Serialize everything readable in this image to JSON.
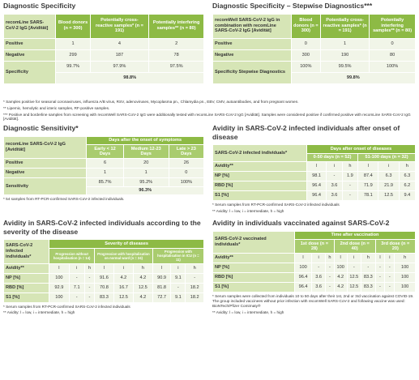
{
  "sections": [
    {
      "title": "Diagnostic Specificity",
      "table": {
        "head": [
          [
            "recomLine SARS-CoV-2 IgG [Avidität]",
            "Blood donors (n = 300)",
            "Potentially cross-reactive samples* (n = 191)",
            "Potentially interfering samples** (n = 80)"
          ]
        ],
        "rows": [
          [
            "Positive",
            "1",
            "4",
            "2"
          ],
          [
            "Negative",
            "299",
            "187",
            "78"
          ],
          [
            "Specificity",
            "99.7%",
            "97.9%",
            "97.5%"
          ]
        ],
        "total": "98.8%"
      }
    },
    {
      "title": "Diagnostic Specificity – Stepwise Diagnostics***",
      "table": {
        "head": [
          [
            "recomWell SARS-CoV-2 IgG in combination with recomLine SARS-CoV-2 IgG [Avidität]",
            "Blood donors (n = 300)",
            "Potentially cross-reactive samples* (n = 191)",
            "Potentially interfering samples** (n = 80)"
          ]
        ],
        "rows": [
          [
            "Positive",
            "0",
            "1",
            "0"
          ],
          [
            "Negative",
            "300",
            "190",
            "80"
          ],
          [
            "Specificity Stepwise Diagnostics",
            "100%",
            "99.5%",
            "100%"
          ]
        ],
        "total": "99.8%"
      }
    },
    {
      "title": "Diagnostic Sensitivity*",
      "table": {
        "head": [
          [
            "recomLine SARS-CoV-2 IgG [Avidität]",
            "Days after the onset of symptoms"
          ],
          [
            "Early < 12 Days",
            "Medium 12-23 Days",
            "Late > 23 Days"
          ]
        ],
        "rows": [
          [
            "Positive",
            "6",
            "20",
            "26"
          ],
          [
            "Negative",
            "1",
            "1",
            "0"
          ],
          [
            "Sensitivity",
            "85.7%",
            "95.2%",
            "100%"
          ]
        ],
        "total": "96.3%"
      },
      "footnotes": [
        "* 54 samples from RT-PCR-confirmed SARS-CoV-2 infected individuals."
      ]
    },
    {
      "title": "Avidity in SARS-CoV-2 infected individuals after onset of disease",
      "table": {
        "head": [
          [
            "SARS-CoV-2 infected individuals*",
            "Days after onset of diseases"
          ],
          [
            "0-50 days (n = 52)",
            "51-100 days (n = 32)"
          ]
        ],
        "rows": [
          [
            "Avidity**",
            "l",
            "i",
            "h",
            "l",
            "i",
            "h"
          ],
          [
            "NP [%]",
            "98.1",
            "-",
            "1.9",
            "87.4",
            "6.3",
            "6.3"
          ],
          [
            "RBD [%]",
            "96.4",
            "3.6",
            "-",
            "71.9",
            "21.9",
            "6.2"
          ],
          [
            "S1 [%]",
            "96.4",
            "3.6",
            "-",
            "78.1",
            "12.5",
            "9.4"
          ]
        ]
      },
      "footnotes": [
        "* Serum samples from RT-PCR-confirmed SARS-CoV-2 infected individuals",
        "** Avidity: l = low, i = intermediate, h = high"
      ]
    },
    {
      "title": "Avidity in SARS-CoV-2 infected individuals according to the severity of the disease",
      "table": {
        "head": [
          [
            "SARS-CoV-2 infected individuals*",
            "Severity of diseases"
          ],
          [
            "Progression without hospitalisation (n = 14)",
            "Progression with hospitalisation on normal ward (n = 24)",
            "Progression with hospitalisation in ICU (n = 11)"
          ]
        ],
        "rows": [
          [
            "Avidity**",
            "l",
            "i",
            "h",
            "l",
            "i",
            "h",
            "l",
            "i",
            "h"
          ],
          [
            "NP [%]",
            "100",
            "-",
            "-",
            "91.6",
            "4.2",
            "4.2",
            "90.9",
            "9.1",
            "-"
          ],
          [
            "RBD [%]",
            "92.9",
            "7.1",
            "-",
            "70.8",
            "16.7",
            "12.5",
            "81.8",
            "-",
            "18.2"
          ],
          [
            "S1 [%]",
            "100",
            "-",
            "-",
            "83.3",
            "12.5",
            "4.2",
            "72.7",
            "9.1",
            "18.2"
          ]
        ]
      },
      "footnotes": [
        "* Serum samples from RT-PCR-confirmed SARS-CoV-2 infected individuals",
        "** Avidity: l = low, i = intermediate, h = high"
      ]
    },
    {
      "title": "Avidity in individuals vaccinated against SARS-CoV-2",
      "table": {
        "head": [
          [
            "SARS-CoV-2 vaccinated individuals*",
            "Time after vaccination"
          ],
          [
            "1st dose (n = 28)",
            "2nd dose (n = 40)",
            "3rd dose (n = 20)"
          ]
        ],
        "rows": [
          [
            "Avidity**",
            "l",
            "i",
            "h",
            "l",
            "i",
            "h",
            "l",
            "i",
            "h"
          ],
          [
            "NP [%]",
            "100",
            "-",
            "-",
            "100",
            "-",
            "-",
            "-",
            "-",
            "100"
          ],
          [
            "RBD [%]",
            "96.4",
            "3.6",
            "-",
            "4.2",
            "12.5",
            "83.3",
            "-",
            "-",
            "100"
          ],
          [
            "S1 [%]",
            "96.4",
            "3.6",
            "-",
            "4.2",
            "12.5",
            "83.3",
            "-",
            "-",
            "100"
          ]
        ]
      },
      "footnotes": [
        "* Serum samples were collected from individuals 10 to 50 days after their 1st, 2nd or 3rd vaccination against COVID-19. The group included vaccinees without prior infection with recomWell SARS-CoV-2 and following vaccine was used: BioNTech/Pfizer Comirnaty®",
        "** Avidity: l = low, i = intermediate, h = high"
      ]
    }
  ],
  "footnotes": [
    "* Samples positive for seasonal coronaviruses, influenza A/B virus, RSV, adenoviruses, Mycoplasma pn., Chlamydia pn., EBV, CMV, autoantibodies, and from pregnant women.",
    "** Lipemic, hemolytic and icteric samples, RF-positive samples.",
    "*** Positive and borderline samples from screening with recomWell SARS-CoV-2 IgG were additionally tested with recomLine SARS-CoV-2 IgG [Avidität]. Samples were considered positive if confirmed positive with recomLine SARS-CoV-2 IgG [Avidität]."
  ]
}
